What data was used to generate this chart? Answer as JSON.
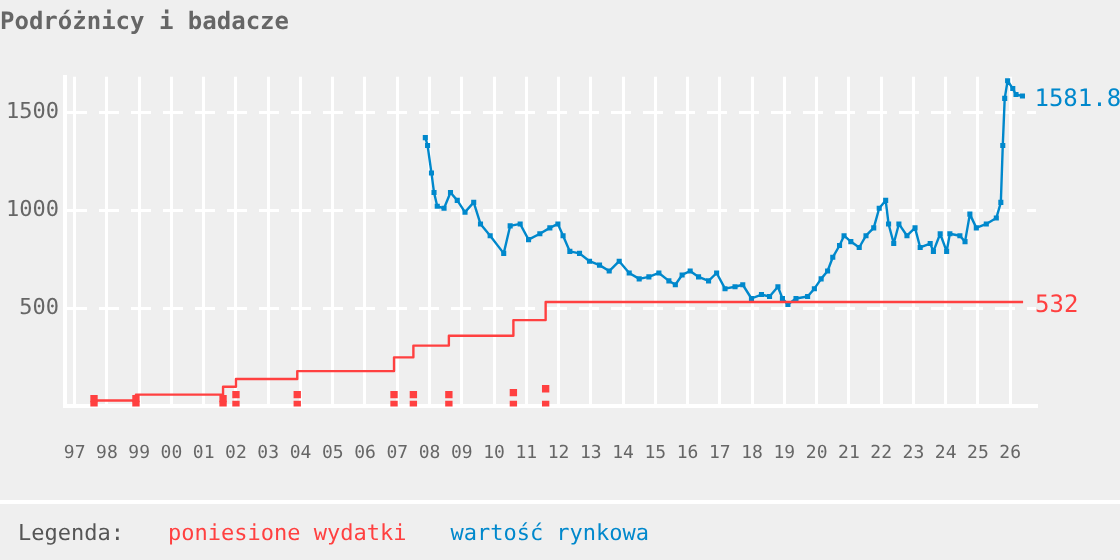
{
  "chart_data": {
    "type": "line",
    "title": "Podróżnicy i badacze",
    "legend_title": "Legenda:",
    "legend": "bottom",
    "grid": true,
    "line_style": "solid",
    "xlim": [
      1996.7,
      2026.8
    ],
    "xticks": [
      {
        "value": 1997,
        "label": "97"
      },
      {
        "value": 1998,
        "label": "98"
      },
      {
        "value": 1999,
        "label": "99"
      },
      {
        "value": 2000,
        "label": "00"
      },
      {
        "value": 2001,
        "label": "01"
      },
      {
        "value": 2002,
        "label": "02"
      },
      {
        "value": 2003,
        "label": "03"
      },
      {
        "value": 2004,
        "label": "04"
      },
      {
        "value": 2005,
        "label": "05"
      },
      {
        "value": 2006,
        "label": "06"
      },
      {
        "value": 2007,
        "label": "07"
      },
      {
        "value": 2008,
        "label": "08"
      },
      {
        "value": 2009,
        "label": "09"
      },
      {
        "value": 2010,
        "label": "10"
      },
      {
        "value": 2011,
        "label": "11"
      },
      {
        "value": 2012,
        "label": "12"
      },
      {
        "value": 2013,
        "label": "13"
      },
      {
        "value": 2014,
        "label": "14"
      },
      {
        "value": 2015,
        "label": "15"
      },
      {
        "value": 2016,
        "label": "16"
      },
      {
        "value": 2017,
        "label": "17"
      },
      {
        "value": 2018,
        "label": "18"
      },
      {
        "value": 2019,
        "label": "19"
      },
      {
        "value": 2020,
        "label": "20"
      },
      {
        "value": 2021,
        "label": "21"
      },
      {
        "value": 2022,
        "label": "22"
      },
      {
        "value": 2023,
        "label": "23"
      },
      {
        "value": 2024,
        "label": "24"
      },
      {
        "value": 2025,
        "label": "25"
      },
      {
        "value": 2026,
        "label": "26"
      }
    ],
    "ylim": [
      0,
      1680
    ],
    "yticks": [
      500,
      1000,
      1500
    ],
    "series": [
      {
        "name": "poniesione wydatki",
        "type": "step",
        "color": "#ff4040",
        "marker": "none",
        "x": [
          1997.6,
          1998.9,
          2001.6,
          2002,
          2003.9,
          2006.9,
          2007.5,
          2008.6,
          2010.6,
          2011.6,
          2026.4
        ],
        "values": [
          30,
          60,
          100,
          140,
          180,
          250,
          310,
          360,
          440,
          532,
          532
        ]
      },
      {
        "name": "wartość rynkowa",
        "type": "line",
        "color": "#0088cc",
        "marker": "square",
        "x": [
          2007.87,
          2007.94,
          2008.06,
          2008.14,
          2008.24,
          2008.45,
          2008.65,
          2008.86,
          2009.1,
          2009.37,
          2009.58,
          2009.88,
          2010.3,
          2010.5,
          2010.81,
          2011.07,
          2011.42,
          2011.73,
          2011.98,
          2012.14,
          2012.35,
          2012.65,
          2012.96,
          2013.27,
          2013.57,
          2013.88,
          2014.19,
          2014.5,
          2014.8,
          2015.11,
          2015.42,
          2015.62,
          2015.83,
          2016.08,
          2016.34,
          2016.65,
          2016.9,
          2017.16,
          2017.47,
          2017.71,
          2017.98,
          2018.29,
          2018.54,
          2018.8,
          2018.94,
          2019.11,
          2019.36,
          2019.72,
          2019.93,
          2020.14,
          2020.34,
          2020.5,
          2020.71,
          2020.85,
          2021.06,
          2021.32,
          2021.53,
          2021.77,
          2021.94,
          2022.14,
          2022.23,
          2022.39,
          2022.55,
          2022.8,
          2023.05,
          2023.21,
          2023.52,
          2023.62,
          2023.83,
          2024.03,
          2024.13,
          2024.44,
          2024.6,
          2024.75,
          2024.95,
          2025.26,
          2025.57,
          2025.71,
          2025.77,
          2025.83,
          2025.92,
          2026.08,
          2026.18,
          2026.38
        ],
        "values": [
          1370,
          1330,
          1190,
          1090,
          1020,
          1010,
          1090,
          1050,
          990,
          1040,
          930,
          870,
          780,
          920,
          930,
          850,
          880,
          910,
          930,
          870,
          790,
          780,
          740,
          720,
          690,
          740,
          680,
          650,
          660,
          680,
          640,
          620,
          670,
          690,
          660,
          640,
          680,
          600,
          610,
          620,
          550,
          570,
          560,
          610,
          550,
          520,
          550,
          560,
          600,
          650,
          690,
          760,
          820,
          870,
          840,
          810,
          870,
          910,
          1010,
          1050,
          930,
          830,
          930,
          870,
          910,
          810,
          830,
          790,
          880,
          790,
          880,
          870,
          840,
          980,
          910,
          930,
          960,
          1040,
          1330,
          1570,
          1660,
          1620,
          1590,
          1581.8
        ]
      },
      {
        "type": "scatter",
        "color": "#ff4040",
        "marker": "square",
        "x": [
          1997.6,
          1997.6,
          1998.9,
          1998.9,
          2001.6,
          2001.6,
          2002,
          2002,
          2003.9,
          2003.9,
          2006.9,
          2006.9,
          2007.5,
          2007.5,
          2008.6,
          2008.6,
          2010.6,
          2010.6,
          2011.6,
          2011.6
        ],
        "values": [
          10,
          40,
          10,
          40,
          10,
          40,
          10,
          60,
          10,
          60,
          10,
          60,
          10,
          60,
          10,
          60,
          10,
          70,
          10,
          90
        ]
      }
    ],
    "annotations": [
      {
        "text": "532",
        "x": 2026.4,
        "y": 532
      },
      {
        "text": "1581.8",
        "x": 2026.38,
        "y": 1581.8
      }
    ]
  }
}
